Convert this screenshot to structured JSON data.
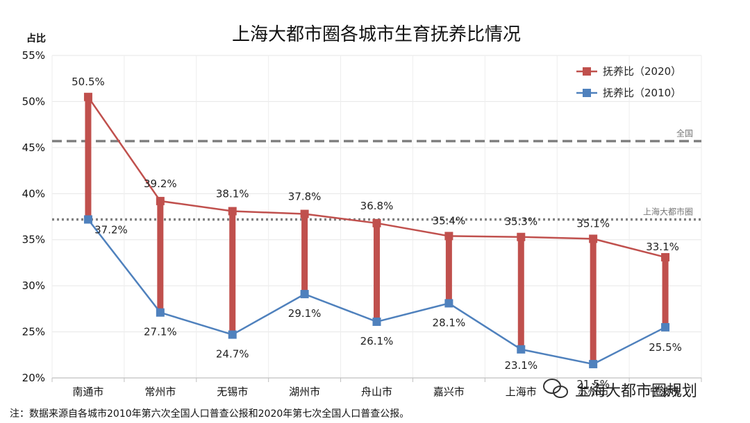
{
  "chart_data": {
    "type": "line",
    "title": "上海大都市圈各城市生育抚养比情况",
    "ylabel": "占比",
    "ylim": [
      20,
      55
    ],
    "yticks": [
      "20%",
      "25%",
      "30%",
      "35%",
      "40%",
      "45%",
      "50%",
      "55%"
    ],
    "yticks_values": [
      20,
      25,
      30,
      35,
      40,
      45,
      50,
      55
    ],
    "categories": [
      "南通市",
      "常州市",
      "无锡市",
      "湖州市",
      "舟山市",
      "嘉兴市",
      "上海市",
      "苏州市",
      "宁波市"
    ],
    "series": [
      {
        "name": "抚养比（2020）",
        "color": "#c0504d",
        "values": [
          50.5,
          39.2,
          38.1,
          37.8,
          36.8,
          35.4,
          35.3,
          35.1,
          33.1
        ],
        "labels": [
          "50.5%",
          "39.2%",
          "38.1%",
          "37.8%",
          "36.8%",
          "35.4%",
          "35.3%",
          "35.1%",
          "33.1%"
        ]
      },
      {
        "name": "抚养比（2010）",
        "color": "#4f81bd",
        "values": [
          37.2,
          27.1,
          24.7,
          29.1,
          26.1,
          28.1,
          23.1,
          21.5,
          25.5
        ],
        "labels": [
          "37.2%",
          "27.1%",
          "24.7%",
          "29.1%",
          "26.1%",
          "28.1%",
          "23.1%",
          "21.5%",
          "25.5%"
        ]
      }
    ],
    "reference_lines": [
      {
        "label": "全国",
        "value": 45.7,
        "style": "dashed",
        "color": "#808080"
      },
      {
        "label": "上海大都市圈",
        "value": 37.2,
        "style": "dotted",
        "color": "#808080"
      }
    ],
    "connector_color": "#c0504d",
    "grid": true,
    "legend": "top-right"
  },
  "note": "注：数据来源自各城市2010年第六次全国人口普查公报和2020年第七次全国人口普查公报。",
  "watermark": "上海大都市圈规划"
}
